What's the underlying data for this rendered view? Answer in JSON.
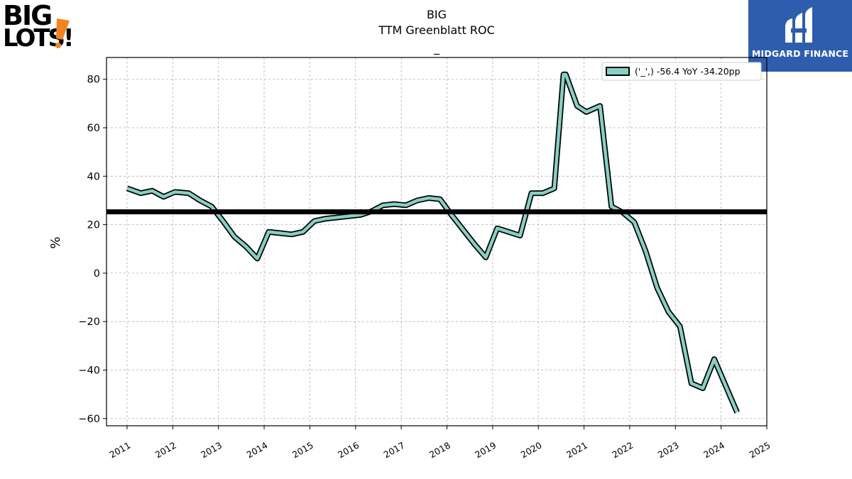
{
  "chart_data": {
    "type": "line",
    "title": "BIG",
    "subtitle": "TTM Greenblatt ROC",
    "subtitle2": "_",
    "ylabel": "%",
    "xlabel": "",
    "xlim": [
      2010.55,
      2025.0
    ],
    "ylim": [
      -63,
      89
    ],
    "x_ticks": [
      "2011",
      "2012",
      "2013",
      "2014",
      "2015",
      "2016",
      "2017",
      "2018",
      "2019",
      "2020",
      "2021",
      "2022",
      "2023",
      "2024",
      "2025"
    ],
    "y_ticks": [
      -60,
      -40,
      -20,
      0,
      20,
      40,
      60,
      80
    ],
    "y_tick_labels": [
      "−60",
      "−40",
      "−20",
      "0",
      "20",
      "40",
      "60",
      "80"
    ],
    "grid": true,
    "legend_position": "top-right",
    "series": [
      {
        "name": "('_',) -56.4 YoY -34.20pp",
        "color": "#88cfc3",
        "x": [
          2011.0,
          2011.3,
          2011.55,
          2011.8,
          2012.05,
          2012.35,
          2012.6,
          2012.85,
          2013.1,
          2013.35,
          2013.6,
          2013.85,
          2014.1,
          2014.35,
          2014.6,
          2014.85,
          2015.1,
          2015.35,
          2015.6,
          2015.85,
          2016.1,
          2016.35,
          2016.6,
          2016.85,
          2017.1,
          2017.35,
          2017.6,
          2017.85,
          2018.1,
          2018.35,
          2018.6,
          2018.85,
          2019.1,
          2019.35,
          2019.6,
          2019.85,
          2020.1,
          2020.35,
          2020.55,
          2020.6,
          2020.85,
          2021.05,
          2021.35,
          2021.6,
          2021.85,
          2022.1,
          2022.35,
          2022.6,
          2022.85,
          2023.1,
          2023.35,
          2023.6,
          2023.85,
          2024.1,
          2024.35
        ],
        "values": [
          35.0,
          33.0,
          34.0,
          31.5,
          33.5,
          33.0,
          30.0,
          27.5,
          21.5,
          15.0,
          11.0,
          6.0,
          17.0,
          16.5,
          16.0,
          17.0,
          21.5,
          22.5,
          23.0,
          23.5,
          24.0,
          25.5,
          28.0,
          28.5,
          28.0,
          30.0,
          31.0,
          30.5,
          24.0,
          18.0,
          12.0,
          6.5,
          18.5,
          17.0,
          15.5,
          33.0,
          33.0,
          35.0,
          82.0,
          82.0,
          69.0,
          66.5,
          69.0,
          27.5,
          25.0,
          21.0,
          9.0,
          -6.0,
          -16.0,
          -22.0,
          -45.5,
          -47.5,
          -35.5,
          -46.5,
          -57.5
        ]
      }
    ],
    "reference_lines": [
      {
        "y": 25.3,
        "color": "#000000"
      }
    ]
  },
  "logos": {
    "left_text_top": "BIG",
    "left_text_bottom": "LOTS!",
    "right_text": "MIDGARD FINANCE"
  }
}
